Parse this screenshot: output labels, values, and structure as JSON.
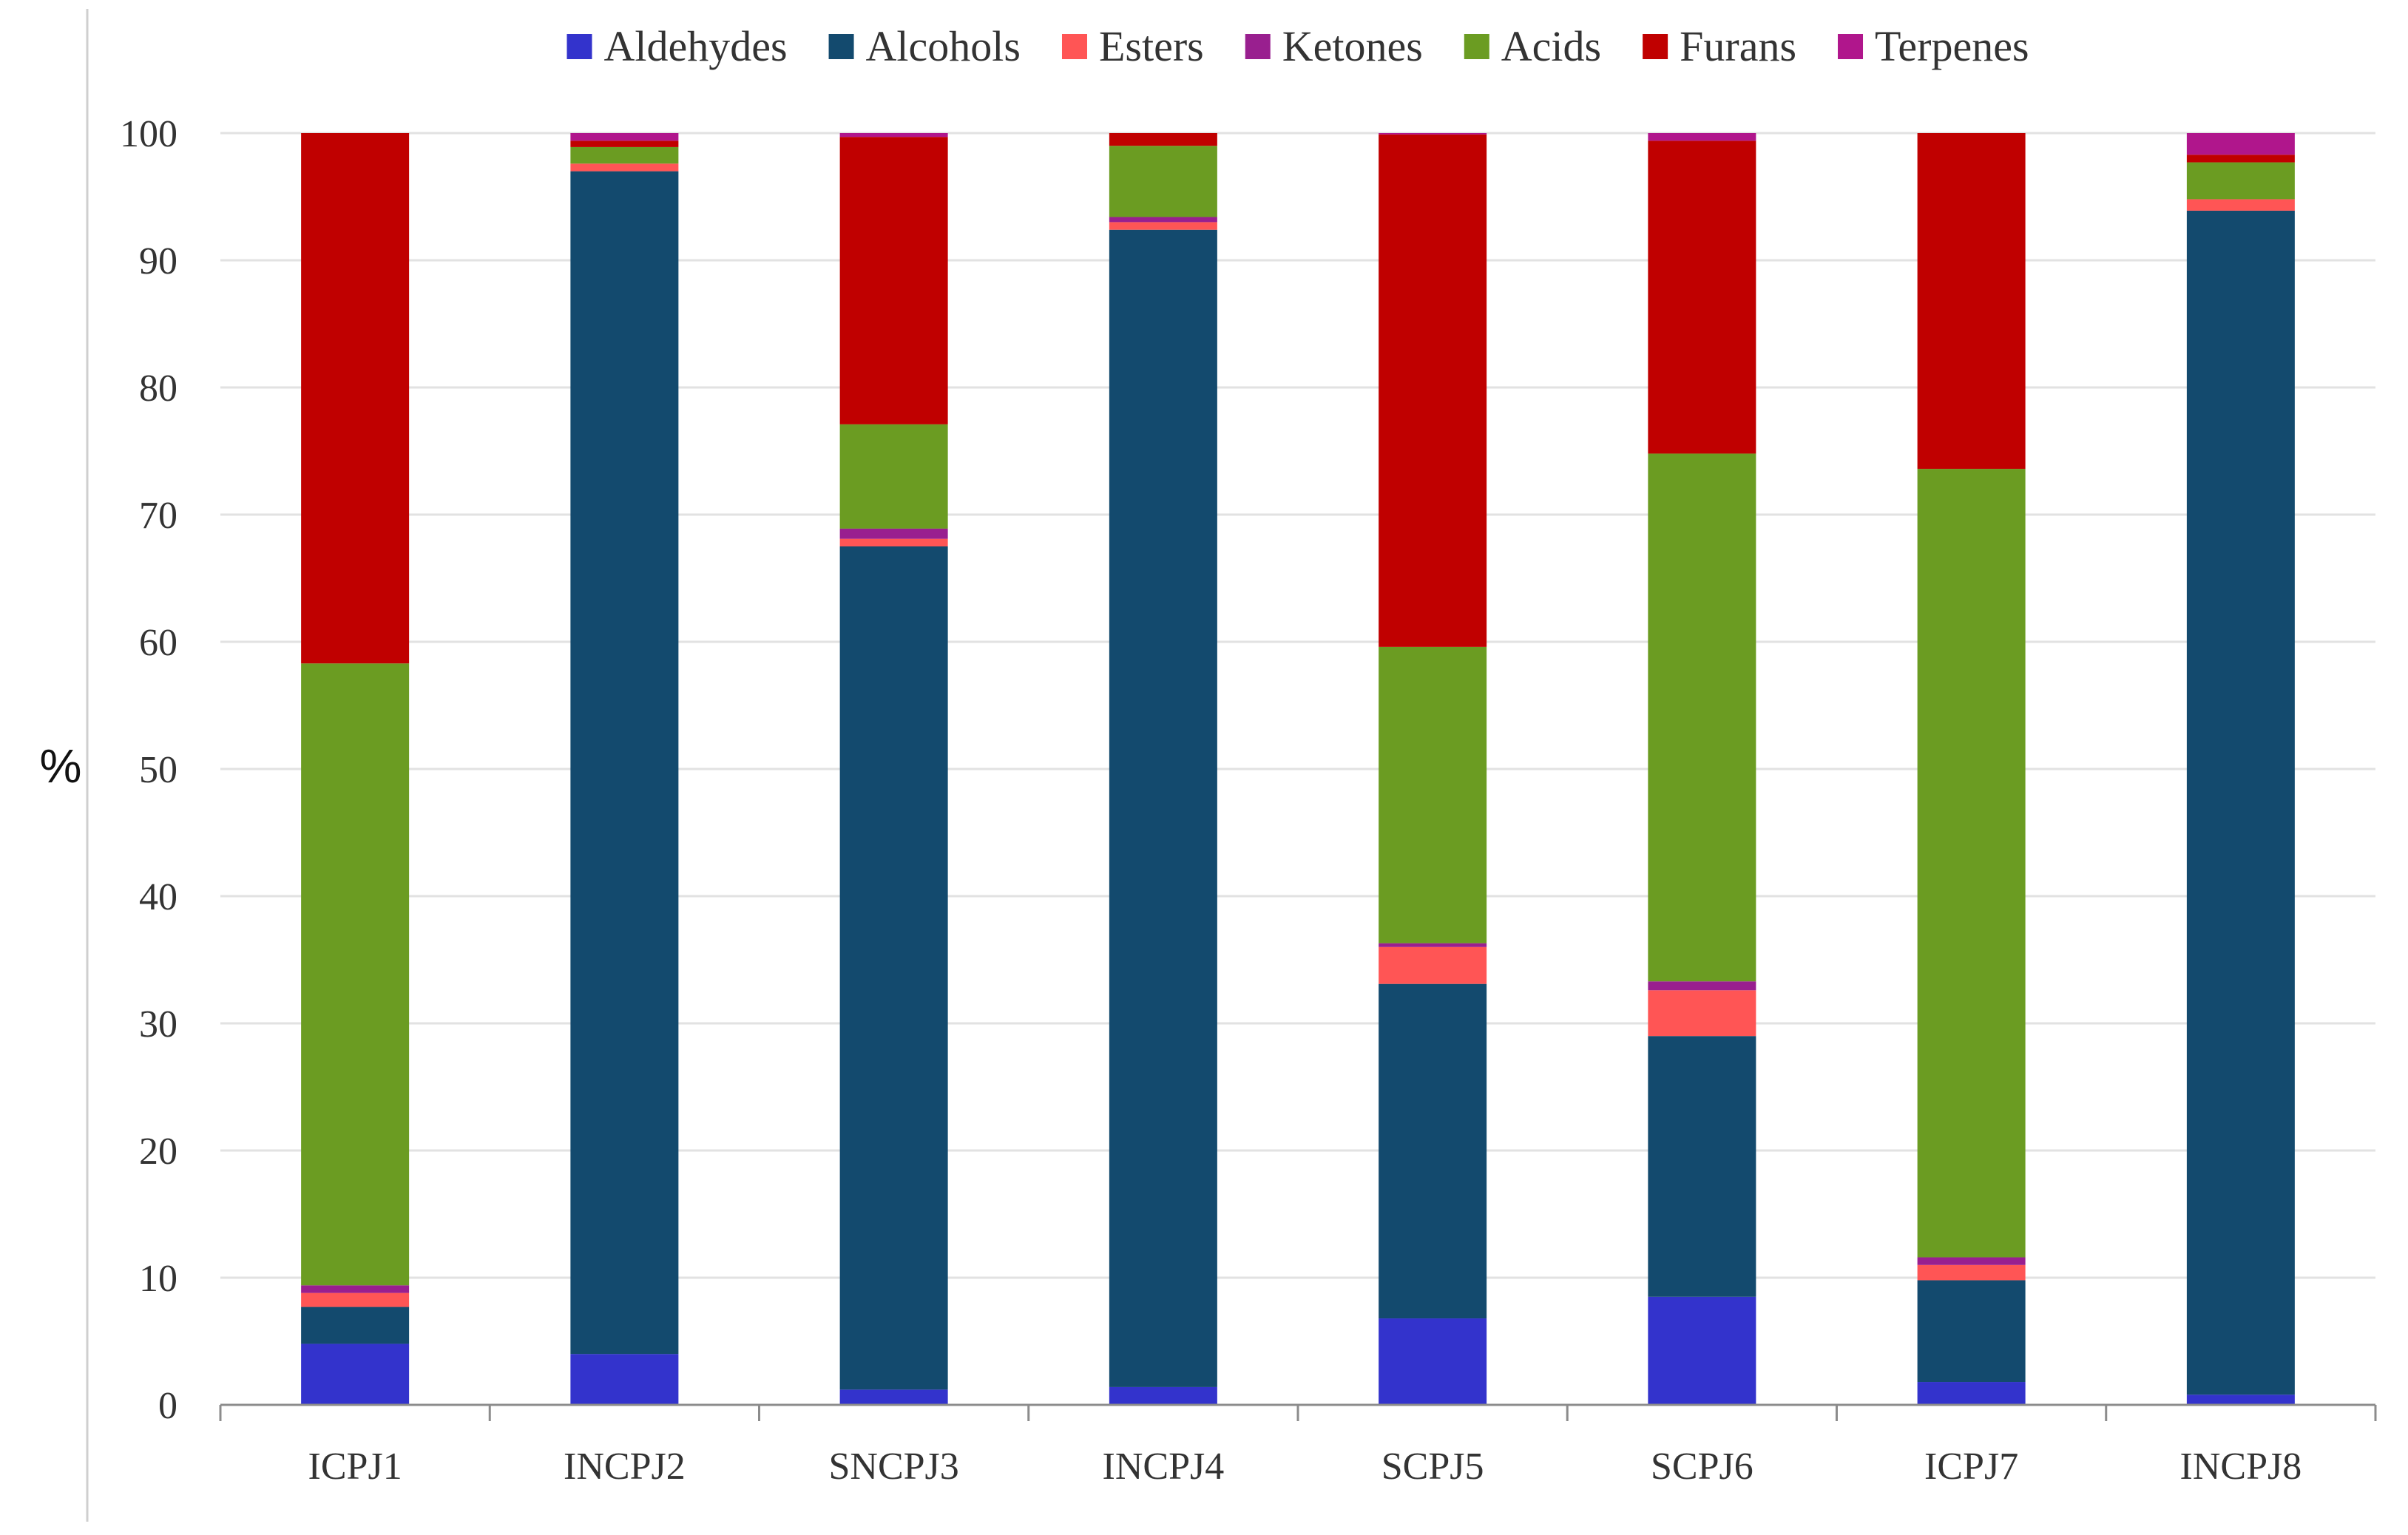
{
  "chart_data": {
    "type": "bar",
    "stacked": true,
    "title": "",
    "xlabel": "",
    "ylabel": "%",
    "ylim": [
      0,
      100
    ],
    "yticks": [
      0,
      10,
      20,
      30,
      40,
      50,
      60,
      70,
      80,
      90,
      100
    ],
    "grid": true,
    "legend_position": "top",
    "categories": [
      "ICPJ1",
      "INCPJ2",
      "SNCPJ3",
      "INCPJ4",
      "SCPJ5",
      "SCPJ6",
      "ICPJ7",
      "INCPJ8"
    ],
    "series": [
      {
        "name": "Aldehydes",
        "color": "#3333cc",
        "values": [
          4.8,
          4.0,
          1.2,
          1.4,
          6.8,
          8.5,
          1.8,
          0.8
        ]
      },
      {
        "name": "Alcohols",
        "color": "#134a6e",
        "values": [
          2.9,
          93.0,
          66.3,
          91.0,
          26.3,
          20.5,
          8.0,
          93.1
        ]
      },
      {
        "name": "Esters",
        "color": "#ff5555",
        "values": [
          1.1,
          0.6,
          0.6,
          0.6,
          2.9,
          3.6,
          1.2,
          0.9
        ]
      },
      {
        "name": "Ketones",
        "color": "#991f8f",
        "values": [
          0.6,
          0.0,
          0.8,
          0.4,
          0.3,
          0.7,
          0.6,
          0.0
        ]
      },
      {
        "name": "Acids",
        "color": "#6b9c22",
        "values": [
          48.9,
          1.3,
          8.2,
          5.6,
          23.3,
          41.5,
          62.0,
          2.9
        ]
      },
      {
        "name": "Furans",
        "color": "#c00000",
        "values": [
          41.7,
          0.5,
          22.6,
          1.0,
          40.3,
          24.6,
          26.4,
          0.6
        ]
      },
      {
        "name": "Terpenes",
        "color": "#b0168c",
        "values": [
          0.0,
          0.6,
          0.3,
          0.0,
          0.1,
          0.6,
          0.0,
          1.7
        ]
      }
    ]
  }
}
